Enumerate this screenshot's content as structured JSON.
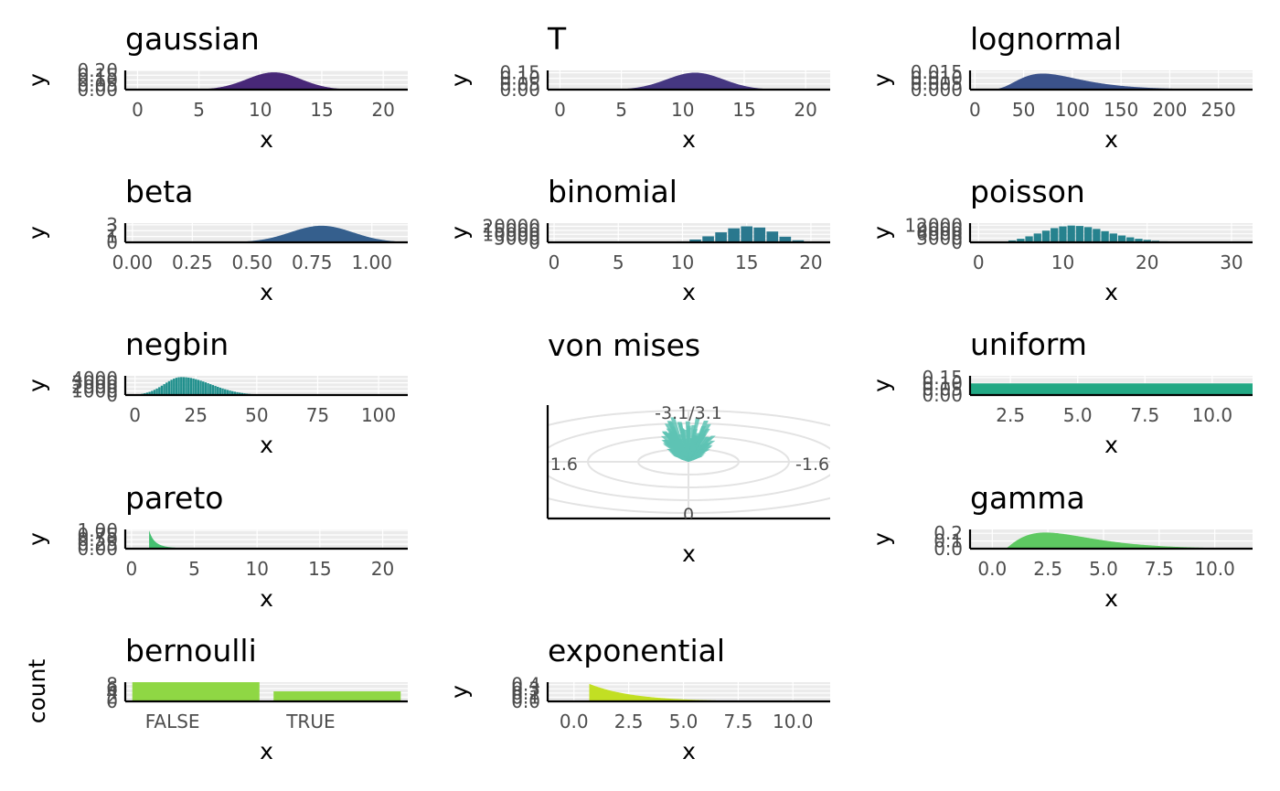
{
  "chart_data": [
    {
      "id": "gaussian",
      "type": "area",
      "title": "gaussian",
      "xlabel": "x",
      "ylabel": "y",
      "xlim": [
        -1,
        22
      ],
      "ylim": [
        0,
        0.2
      ],
      "xticks": [
        0,
        5,
        10,
        15,
        20
      ],
      "yticks": [
        0.0,
        0.05,
        0.1,
        0.15,
        0.2
      ],
      "xtick_labels": [
        "0",
        "5",
        "10",
        "15",
        "20"
      ],
      "ytick_labels": [
        "0.00",
        "0.05",
        "0.10",
        "0.15",
        "0.20"
      ],
      "fill": "#482878",
      "shape": {
        "dist": "normal",
        "mean": 11.1,
        "sd": 2.2,
        "peak": 0.18,
        "from": 3,
        "to": 21
      }
    },
    {
      "id": "t",
      "type": "area",
      "title": "T",
      "xlabel": "x",
      "ylabel": "y",
      "xlim": [
        -1,
        22
      ],
      "ylim": [
        0,
        0.17
      ],
      "xticks": [
        0,
        5,
        10,
        15,
        20
      ],
      "yticks": [
        0.0,
        0.05,
        0.1,
        0.15
      ],
      "xtick_labels": [
        "0",
        "5",
        "10",
        "15",
        "20"
      ],
      "ytick_labels": [
        "0.00",
        "0.05",
        "0.10",
        "0.15"
      ],
      "fill": "#453781",
      "shape": {
        "dist": "normal",
        "mean": 11,
        "sd": 2.3,
        "peak": 0.15,
        "from": 1,
        "to": 21
      }
    },
    {
      "id": "lognormal",
      "type": "area",
      "title": "lognormal",
      "xlabel": "x",
      "ylabel": "y",
      "xlim": [
        -5,
        285
      ],
      "ylim": [
        0,
        0.0165
      ],
      "xticks": [
        0,
        50,
        100,
        150,
        200,
        250
      ],
      "yticks": [
        0.0,
        0.005,
        0.01,
        0.015
      ],
      "xtick_labels": [
        "0",
        "50",
        "100",
        "150",
        "200",
        "250"
      ],
      "ytick_labels": [
        "0.000",
        "0.005",
        "0.010",
        "0.015"
      ],
      "fill": "#3b528b",
      "shape": {
        "dist": "lognormal",
        "meanlog": 4.45,
        "sdlog": 0.45,
        "peak": 0.0138,
        "from": 20,
        "to": 280
      }
    },
    {
      "id": "beta",
      "type": "area",
      "title": "beta",
      "xlabel": "x",
      "ylabel": "y",
      "xlim": [
        -0.03,
        1.15
      ],
      "ylim": [
        0,
        3.3
      ],
      "xticks": [
        0.0,
        0.25,
        0.5,
        0.75,
        1.0
      ],
      "yticks": [
        0,
        1,
        2,
        3
      ],
      "xtick_labels": [
        "0.00",
        "0.25",
        "0.50",
        "0.75",
        "1.00"
      ],
      "ytick_labels": [
        "0",
        "1",
        "2",
        "3"
      ],
      "fill": "#355f8d",
      "shape": {
        "dist": "normal",
        "mean": 0.79,
        "sd": 0.13,
        "peak": 2.85,
        "from": 0.0,
        "to": 1.1
      }
    },
    {
      "id": "binomial",
      "type": "bar",
      "title": "binomial",
      "xlabel": "x",
      "ylabel": "y",
      "xlim": [
        -0.5,
        21.5
      ],
      "ylim": [
        0,
        24000
      ],
      "xticks": [
        0,
        5,
        10,
        15,
        20
      ],
      "yticks": [
        0,
        5000,
        10000,
        15000,
        20000
      ],
      "xtick_labels": [
        "0",
        "5",
        "10",
        "15",
        "20"
      ],
      "ytick_labels": [
        "0",
        "5000",
        "10000",
        "15000",
        "20000"
      ],
      "fill": "#2a788e",
      "bars": {
        "x": [
          9,
          10,
          11,
          12,
          13,
          14,
          15,
          16,
          17,
          18,
          19,
          20
        ],
        "values": [
          300,
          1200,
          3500,
          7500,
          12500,
          17500,
          20000,
          18500,
          13500,
          7000,
          2500,
          500
        ]
      }
    },
    {
      "id": "poisson",
      "type": "bar",
      "title": "poisson",
      "xlabel": "x",
      "ylabel": "y",
      "xlim": [
        -1,
        32.5
      ],
      "ylim": [
        0,
        13500
      ],
      "xticks": [
        0,
        10,
        20,
        30
      ],
      "yticks": [
        0,
        3000,
        6000,
        9000,
        12000
      ],
      "xtick_labels": [
        "0",
        "10",
        "20",
        "30"
      ],
      "ytick_labels": [
        "0",
        "3000",
        "6000",
        "9000",
        "12000"
      ],
      "fill": "#26828e",
      "bars": {
        "x": [
          2,
          3,
          4,
          5,
          6,
          7,
          8,
          9,
          10,
          11,
          12,
          13,
          14,
          15,
          16,
          17,
          18,
          19,
          20,
          21,
          22,
          23,
          24,
          25,
          26,
          27,
          28
        ],
        "values": [
          150,
          500,
          1300,
          2500,
          4200,
          6200,
          8200,
          10000,
          11200,
          11800,
          11500,
          10700,
          9400,
          7800,
          6200,
          4800,
          3500,
          2500,
          1700,
          1100,
          700,
          450,
          280,
          170,
          100,
          60,
          30
        ]
      }
    },
    {
      "id": "negbin",
      "type": "bar",
      "title": "negbin",
      "xlabel": "x",
      "ylabel": "y",
      "xlim": [
        -4,
        112
      ],
      "ylim": [
        0,
        4700
      ],
      "xticks": [
        0,
        25,
        50,
        75,
        100
      ],
      "yticks": [
        0,
        1000,
        2000,
        3000,
        4000
      ],
      "xtick_labels": [
        "0",
        "25",
        "50",
        "75",
        "100"
      ],
      "ytick_labels": [
        "0",
        "1000",
        "2000",
        "3000",
        "4000"
      ],
      "fill": "#21908d",
      "shape": {
        "dist": "skewed",
        "mode": 19,
        "peak": 4400,
        "left_sd": 7,
        "right_sd": 12,
        "from": 3,
        "to": 75
      }
    },
    {
      "id": "vonmises",
      "type": "polar-bar",
      "title": "von mises",
      "xlabel": "x",
      "ylabel": "",
      "angle_labels": [
        "-3.1/3.1",
        "-1.6",
        "0",
        "1.6"
      ],
      "rings": 4,
      "fill": "#5ec3b4",
      "opacity": 0.85,
      "shape": {
        "center_angle": 3.1,
        "spread": 0.45,
        "max_radius": 0.45,
        "bars": 150
      }
    },
    {
      "id": "uniform",
      "type": "area",
      "title": "uniform",
      "xlabel": "x",
      "ylabel": "y",
      "xlim": [
        1,
        11.5
      ],
      "ylim": [
        0,
        0.165
      ],
      "xticks": [
        2.5,
        5.0,
        7.5,
        10.0
      ],
      "yticks": [
        0.0,
        0.05,
        0.1,
        0.15
      ],
      "xtick_labels": [
        "2.5",
        "5.0",
        "7.5",
        "10.0"
      ],
      "ytick_labels": [
        "0.00",
        "0.05",
        "0.10",
        "0.15"
      ],
      "fill": "#22a884",
      "shape": {
        "dist": "uniform",
        "level": 0.1,
        "from": 1,
        "to": 11.5
      }
    },
    {
      "id": "pareto",
      "type": "area",
      "title": "pareto",
      "xlabel": "x",
      "ylabel": "y",
      "xlim": [
        -0.5,
        22
      ],
      "ylim": [
        0,
        1.05
      ],
      "xticks": [
        0,
        5,
        10,
        15,
        20
      ],
      "yticks": [
        0.0,
        0.25,
        0.5,
        0.75,
        1.0
      ],
      "xtick_labels": [
        "0",
        "5",
        "10",
        "15",
        "20"
      ],
      "ytick_labels": [
        "0.00",
        "0.25",
        "0.50",
        "0.75",
        "1.00"
      ],
      "fill": "#44bf70",
      "shape": {
        "dist": "pareto",
        "xm": 1.4,
        "peak": 1.0,
        "power": 2.2,
        "to": 22
      }
    },
    {
      "id": "gamma",
      "type": "area",
      "title": "gamma",
      "xlabel": "x",
      "ylabel": "y",
      "xlim": [
        -1,
        11.7
      ],
      "ylim": [
        0,
        0.25
      ],
      "xticks": [
        0.0,
        2.5,
        5.0,
        7.5,
        10.0
      ],
      "yticks": [
        0.0,
        0.1,
        0.2
      ],
      "xtick_labels": [
        "0.0",
        "2.5",
        "5.0",
        "7.5",
        "10.0"
      ],
      "ytick_labels": [
        "0.0",
        "0.1",
        "0.2"
      ],
      "fill": "#5ec962",
      "shape": {
        "dist": "gamma",
        "k": 2.2,
        "theta": 1.5,
        "offset": 0.6,
        "peak": 0.21,
        "to": 11.7
      }
    },
    {
      "id": "bernoulli",
      "type": "bar",
      "title": "bernoulli",
      "xlabel": "x",
      "ylabel": "count",
      "categories": [
        "FALSE",
        "TRUE"
      ],
      "values": [
        9,
        4.7
      ],
      "ylim": [
        0,
        9
      ],
      "yticks": [
        0,
        2,
        4,
        6,
        8
      ],
      "ytick_labels": [
        "0",
        "2",
        "4",
        "6",
        "8"
      ],
      "fill": "#8fd744"
    },
    {
      "id": "exponential",
      "type": "area",
      "title": "exponential",
      "xlabel": "x",
      "ylabel": "y",
      "xlim": [
        -1.2,
        11.7
      ],
      "ylim": [
        0,
        0.46
      ],
      "xticks": [
        0.0,
        2.5,
        5.0,
        7.5,
        10.0
      ],
      "yticks": [
        0.0,
        0.1,
        0.2,
        0.3,
        0.4
      ],
      "xtick_labels": [
        "0.0",
        "2.5",
        "5.0",
        "7.5",
        "10.0"
      ],
      "ytick_labels": [
        "0.0",
        "0.1",
        "0.2",
        "0.3",
        "0.4"
      ],
      "fill": "#c2df23",
      "shape": {
        "dist": "exponential",
        "start": 0.7,
        "peak": 0.42,
        "rate": 0.5,
        "to": 11.7
      }
    }
  ]
}
